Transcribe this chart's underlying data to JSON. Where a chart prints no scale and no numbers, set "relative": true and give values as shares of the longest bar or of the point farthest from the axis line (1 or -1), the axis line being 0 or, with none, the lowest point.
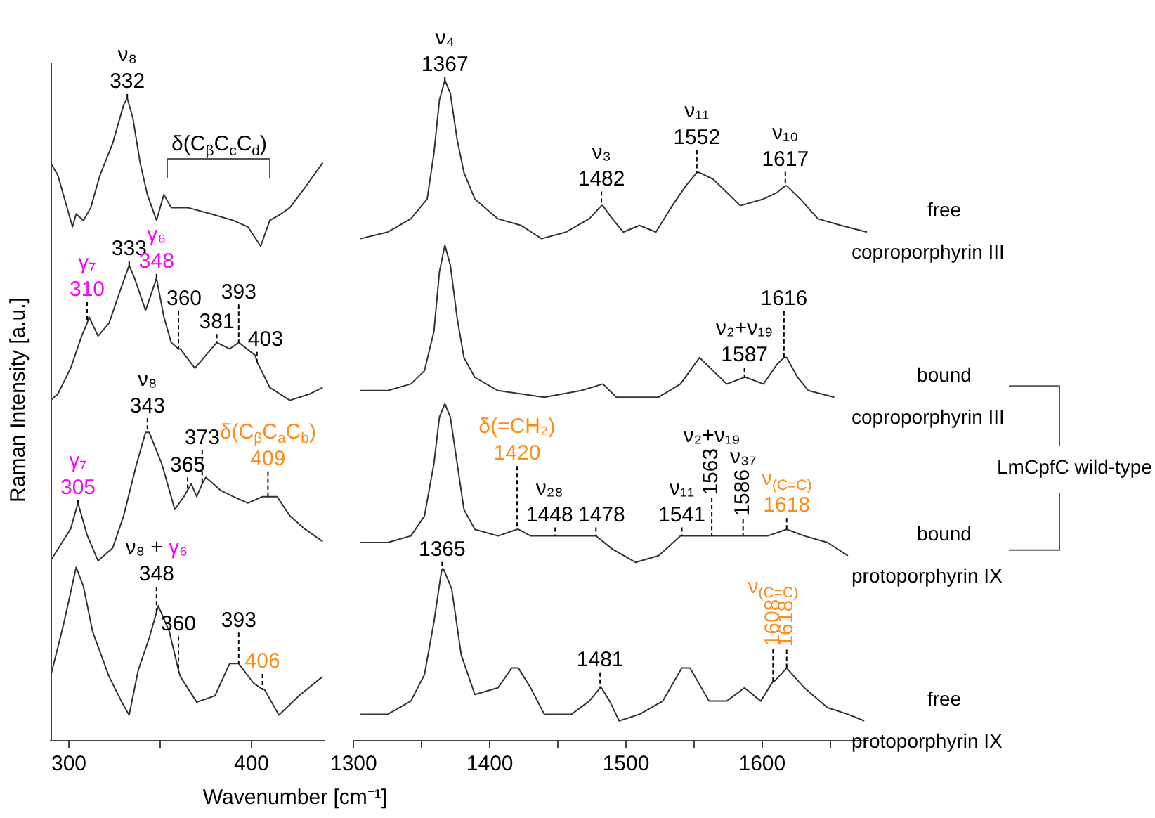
{
  "chart_data": [
    {
      "type": "line",
      "relative": true,
      "xlabel": "Wavenumber [cm⁻¹]",
      "ylabel": "Raman Intensity [a.u.]",
      "xlim": [
        290,
        440
      ],
      "xticks": [
        300,
        {
          "value": 350,
          "label": null
        },
        400
      ],
      "grid": false,
      "legend": false,
      "marker": "none",
      "line_style": "solid",
      "series": [
        {
          "color": "#333333",
          "x": [
            290,
            294,
            298,
            302,
            304,
            308,
            312,
            317,
            324,
            330,
            332,
            335,
            339,
            343,
            348,
            352,
            356,
            365,
            378,
            390,
            398,
            405,
            410,
            416,
            421,
            429,
            439
          ],
          "values": [
            0.9,
            0.88,
            0.84,
            0.8,
            0.82,
            0.81,
            0.83,
            0.88,
            0.93,
            0.99,
            1.0,
            0.97,
            0.9,
            0.85,
            0.81,
            0.85,
            0.83,
            0.83,
            0.82,
            0.81,
            0.8,
            0.77,
            0.81,
            0.82,
            0.83,
            0.86,
            0.9
          ]
        },
        {
          "color": "#333333",
          "x": [
            290,
            294,
            301,
            307,
            310,
            311,
            316,
            322,
            328,
            333,
            336,
            342,
            348,
            352,
            356,
            360,
            361,
            369,
            375,
            381,
            388,
            393,
            402,
            403,
            410,
            421,
            432,
            439
          ],
          "values": [
            0.53,
            0.54,
            0.58,
            0.63,
            0.65,
            0.66,
            0.63,
            0.65,
            0.7,
            0.74,
            0.72,
            0.67,
            0.72,
            0.66,
            0.62,
            0.61,
            0.61,
            0.58,
            0.6,
            0.62,
            0.61,
            0.62,
            0.6,
            0.59,
            0.55,
            0.53,
            0.54,
            0.55
          ]
        },
        {
          "color": "#333333",
          "x": [
            290,
            301,
            305,
            310,
            316,
            324,
            330,
            337,
            342,
            343,
            344,
            351,
            358,
            363,
            365,
            367,
            370,
            373,
            375,
            383,
            390,
            398,
            406,
            409,
            414,
            421,
            429,
            439
          ],
          "values": [
            0.28,
            0.33,
            0.37,
            0.32,
            0.28,
            0.3,
            0.35,
            0.43,
            0.48,
            0.48,
            0.48,
            0.43,
            0.36,
            0.38,
            0.39,
            0.4,
            0.38,
            0.4,
            0.41,
            0.39,
            0.38,
            0.37,
            0.38,
            0.38,
            0.38,
            0.35,
            0.33,
            0.31
          ]
        },
        {
          "color": "#333333",
          "x": [
            290,
            297,
            304,
            308,
            313,
            322,
            329,
            333,
            338,
            344,
            348,
            349,
            355,
            360,
            361,
            370,
            380,
            388,
            393,
            401,
            406,
            407,
            415,
            426,
            439
          ],
          "values": [
            0.1,
            0.18,
            0.27,
            0.24,
            0.17,
            0.1,
            0.06,
            0.04,
            0.11,
            0.16,
            0.2,
            0.21,
            0.17,
            0.11,
            0.1,
            0.06,
            0.07,
            0.12,
            0.12,
            0.09,
            0.08,
            0.08,
            0.04,
            0.07,
            0.1
          ]
        }
      ],
      "annotations": [
        {
          "text": "ν₈\n332",
          "x": 332,
          "y": 1.0
        },
        "δ(C$_{β}$C$_{c}$C$_{d}$)",
        {
          "text": "γ₇\n310",
          "x": 310,
          "y": 0.65
        },
        {
          "text": "333",
          "x": 333,
          "y": 0.74
        },
        {
          "text": "γ₆\n348",
          "x": 348,
          "y": 0.72
        },
        {
          "text": "360",
          "x": 360,
          "y": 0.61
        },
        {
          "text": "381",
          "x": 381,
          "y": 0.62
        },
        {
          "text": "393",
          "x": 393,
          "y": 0.62
        },
        {
          "text": "403",
          "x": 403,
          "y": 0.59
        },
        {
          "text": "ν₈\n343",
          "x": 343,
          "y": 0.48
        },
        {
          "text": "δ(C$_{β}$C$_{a}$C$_{b}$)\n409",
          "x": 409,
          "y": 0.38
        },
        {
          "text": "373",
          "x": 373,
          "y": 0.4
        },
        {
          "text": "365",
          "x": 365,
          "y": 0.39
        },
        {
          "text": "γ₇\n305",
          "x": 305,
          "y": 0.37
        },
        {
          "text": "ν₈ + γ₆\n348",
          "x": 348,
          "y": 0.2
        },
        {
          "text": "360",
          "x": 360,
          "y": 0.11
        },
        {
          "text": "393",
          "x": 393,
          "y": 0.12
        },
        {
          "text": "406",
          "x": 406,
          "y": 0.08
        }
      ]
    },
    {
      "type": "line",
      "relative": true,
      "xlim": [
        1300,
        1678
      ],
      "xticks": [
        1300,
        {
          "value": 1350,
          "label": null
        },
        1400,
        {
          "value": 1450,
          "label": null
        },
        1500,
        {
          "value": 1550,
          "label": null
        },
        1600,
        {
          "value": 1650,
          "label": null
        }
      ],
      "grid": false,
      "legend": false,
      "marker": "none",
      "line_style": "solid",
      "series": [
        {
          "name": "free\ncoproporphyrin III",
          "color": "#333333",
          "x": [
            1305,
            1325,
            1342,
            1354,
            1359,
            1363,
            1367,
            1371,
            1376,
            1381,
            1389,
            1406,
            1423,
            1438,
            1456,
            1473,
            1482,
            1483,
            1490,
            1498,
            1510,
            1522,
            1534,
            1544,
            1552,
            1554,
            1564,
            1574,
            1584,
            1601,
            1611,
            1617,
            1618,
            1628,
            1641,
            1658,
            1677
          ],
          "values": [
            0.76,
            0.77,
            0.79,
            0.82,
            0.89,
            0.97,
            1.0,
            0.98,
            0.91,
            0.86,
            0.82,
            0.79,
            0.78,
            0.76,
            0.77,
            0.79,
            0.81,
            0.81,
            0.79,
            0.77,
            0.78,
            0.77,
            0.81,
            0.84,
            0.86,
            0.86,
            0.85,
            0.83,
            0.81,
            0.82,
            0.83,
            0.84,
            0.84,
            0.82,
            0.79,
            0.78,
            0.77
          ]
        },
        {
          "name": "bound\ncoproporphyrin III",
          "color": "#333333",
          "x": [
            1305,
            1325,
            1342,
            1352,
            1359,
            1363,
            1367,
            1371,
            1376,
            1381,
            1389,
            1406,
            1440,
            1467,
            1483,
            1493,
            1507,
            1524,
            1540,
            1554,
            1564,
            1574,
            1587,
            1588,
            1601,
            1611,
            1616,
            1618,
            1626,
            1634,
            1653
          ],
          "values": [
            0.53,
            0.53,
            0.54,
            0.56,
            0.62,
            0.71,
            0.75,
            0.72,
            0.64,
            0.58,
            0.55,
            0.53,
            0.52,
            0.53,
            0.54,
            0.52,
            0.52,
            0.52,
            0.54,
            0.58,
            0.56,
            0.54,
            0.55,
            0.55,
            0.54,
            0.57,
            0.58,
            0.58,
            0.55,
            0.53,
            0.52
          ]
        },
        {
          "name": "bound\nprotoporphyrin IX",
          "color": "#333333",
          "x": [
            1305,
            1325,
            1342,
            1352,
            1359,
            1363,
            1367,
            1371,
            1376,
            1381,
            1389,
            1406,
            1420,
            1421,
            1430,
            1448,
            1449,
            1463,
            1478,
            1490,
            1507,
            1524,
            1540,
            1541,
            1554,
            1563,
            1574,
            1586,
            1587,
            1604,
            1618,
            1631,
            1648,
            1663
          ],
          "values": [
            0.3,
            0.3,
            0.31,
            0.34,
            0.42,
            0.49,
            0.51,
            0.49,
            0.42,
            0.35,
            0.32,
            0.31,
            0.32,
            0.32,
            0.31,
            0.31,
            0.31,
            0.31,
            0.31,
            0.29,
            0.27,
            0.28,
            0.31,
            0.31,
            0.31,
            0.31,
            0.31,
            0.31,
            0.31,
            0.31,
            0.32,
            0.31,
            0.3,
            0.28
          ]
        },
        {
          "name": "free\nprotoporphyrin IX",
          "color": "#333333",
          "x": [
            1305,
            1325,
            1342,
            1352,
            1359,
            1364,
            1365,
            1366,
            1372,
            1379,
            1389,
            1406,
            1416,
            1421,
            1430,
            1440,
            1460,
            1473,
            1481,
            1482,
            1488,
            1495,
            1510,
            1527,
            1541,
            1547,
            1561,
            1574,
            1587,
            1599,
            1608,
            1609,
            1618,
            1631,
            1648,
            1663,
            1675
          ],
          "values": [
            0.04,
            0.04,
            0.06,
            0.1,
            0.18,
            0.25,
            0.26,
            0.26,
            0.23,
            0.13,
            0.07,
            0.08,
            0.11,
            0.11,
            0.08,
            0.04,
            0.04,
            0.06,
            0.08,
            0.08,
            0.06,
            0.03,
            0.04,
            0.06,
            0.11,
            0.11,
            0.06,
            0.06,
            0.08,
            0.06,
            0.09,
            0.09,
            0.11,
            0.08,
            0.05,
            0.04,
            0.03
          ]
        }
      ],
      "annotations": [
        {
          "text": "ν₄\n1367",
          "x": 1367,
          "y": 1.0
        },
        {
          "text": "ν₃\n1482",
          "x": 1482,
          "y": 0.81
        },
        {
          "text": "ν₁₁\n1552",
          "x": 1552,
          "y": 0.86
        },
        {
          "text": "ν₁₀\n1617",
          "x": 1617,
          "y": 0.84
        },
        {
          "text": "1616",
          "x": 1616,
          "y": 0.58
        },
        {
          "text": "ν₂+ν₁₉\n1587",
          "x": 1587,
          "y": 0.55
        },
        {
          "text": "δ(=CH₂)\n1420",
          "x": 1420,
          "y": 0.32
        },
        {
          "text": "ν₂₈\n1448",
          "x": 1448,
          "y": 0.31
        },
        {
          "text": "1478",
          "x": 1478,
          "y": 0.31
        },
        {
          "text": "ν₁₁\n1541",
          "x": 1541,
          "y": 0.31
        },
        {
          "text": "ν₂+ν₁₉\n1563",
          "x": 1563,
          "y": 0.31
        },
        {
          "text": "ν₃₇\n1586",
          "x": 1586,
          "y": 0.31
        },
        {
          "text": "ν$_{(C=C)}$\n1618",
          "x": 1618,
          "y": 0.32
        },
        {
          "text": "1365",
          "x": 1365,
          "y": 0.26
        },
        {
          "text": "1481",
          "x": 1481,
          "y": 0.08
        },
        {
          "text": "ν$_{(C=C)}$\n1608",
          "x": 1608,
          "y": 0.09
        },
        {
          "text": "1618",
          "x": 1618,
          "y": 0.11
        },
        "LmCpfC wild-type"
      ]
    }
  ]
}
